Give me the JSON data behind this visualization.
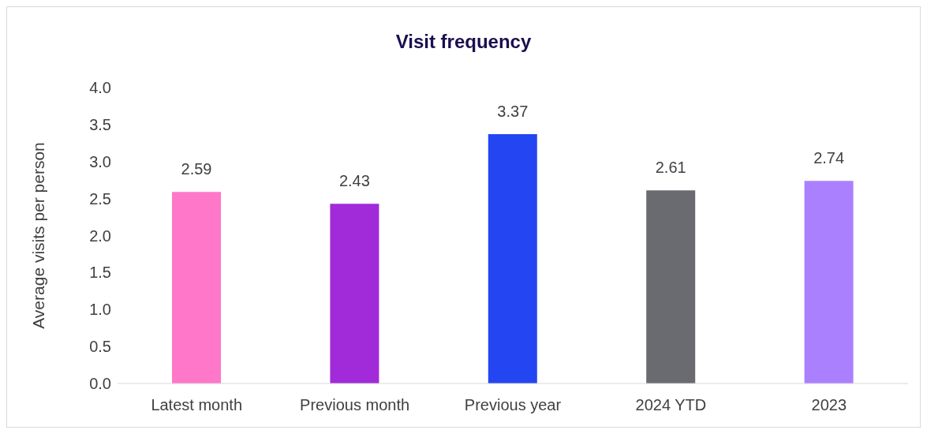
{
  "chart_data": {
    "type": "bar",
    "title": "Visit frequency",
    "ylabel": "Average visits per person",
    "categories": [
      "Latest month",
      "Previous month",
      "Previous year",
      "2024 YTD",
      "2023"
    ],
    "values": [
      2.59,
      2.43,
      3.37,
      2.61,
      2.74
    ],
    "colors": [
      "#ff77c8",
      "#a12ad9",
      "#2446f2",
      "#6a6b70",
      "#aa80ff"
    ],
    "ylim": [
      0,
      4
    ],
    "yticks": [
      {
        "value": 0,
        "label": "0.0"
      },
      {
        "value": 0.5,
        "label": "0.5"
      },
      {
        "value": 1,
        "label": "1.0"
      },
      {
        "value": 1.5,
        "label": "1.5"
      },
      {
        "value": 2,
        "label": "2.0"
      },
      {
        "value": 2.5,
        "label": "2.5"
      },
      {
        "value": 3,
        "label": "3.0"
      },
      {
        "value": 3.5,
        "label": "3.5"
      },
      {
        "value": 4,
        "label": "4.0"
      }
    ],
    "data_labels": true,
    "grid": false,
    "legend": false
  }
}
